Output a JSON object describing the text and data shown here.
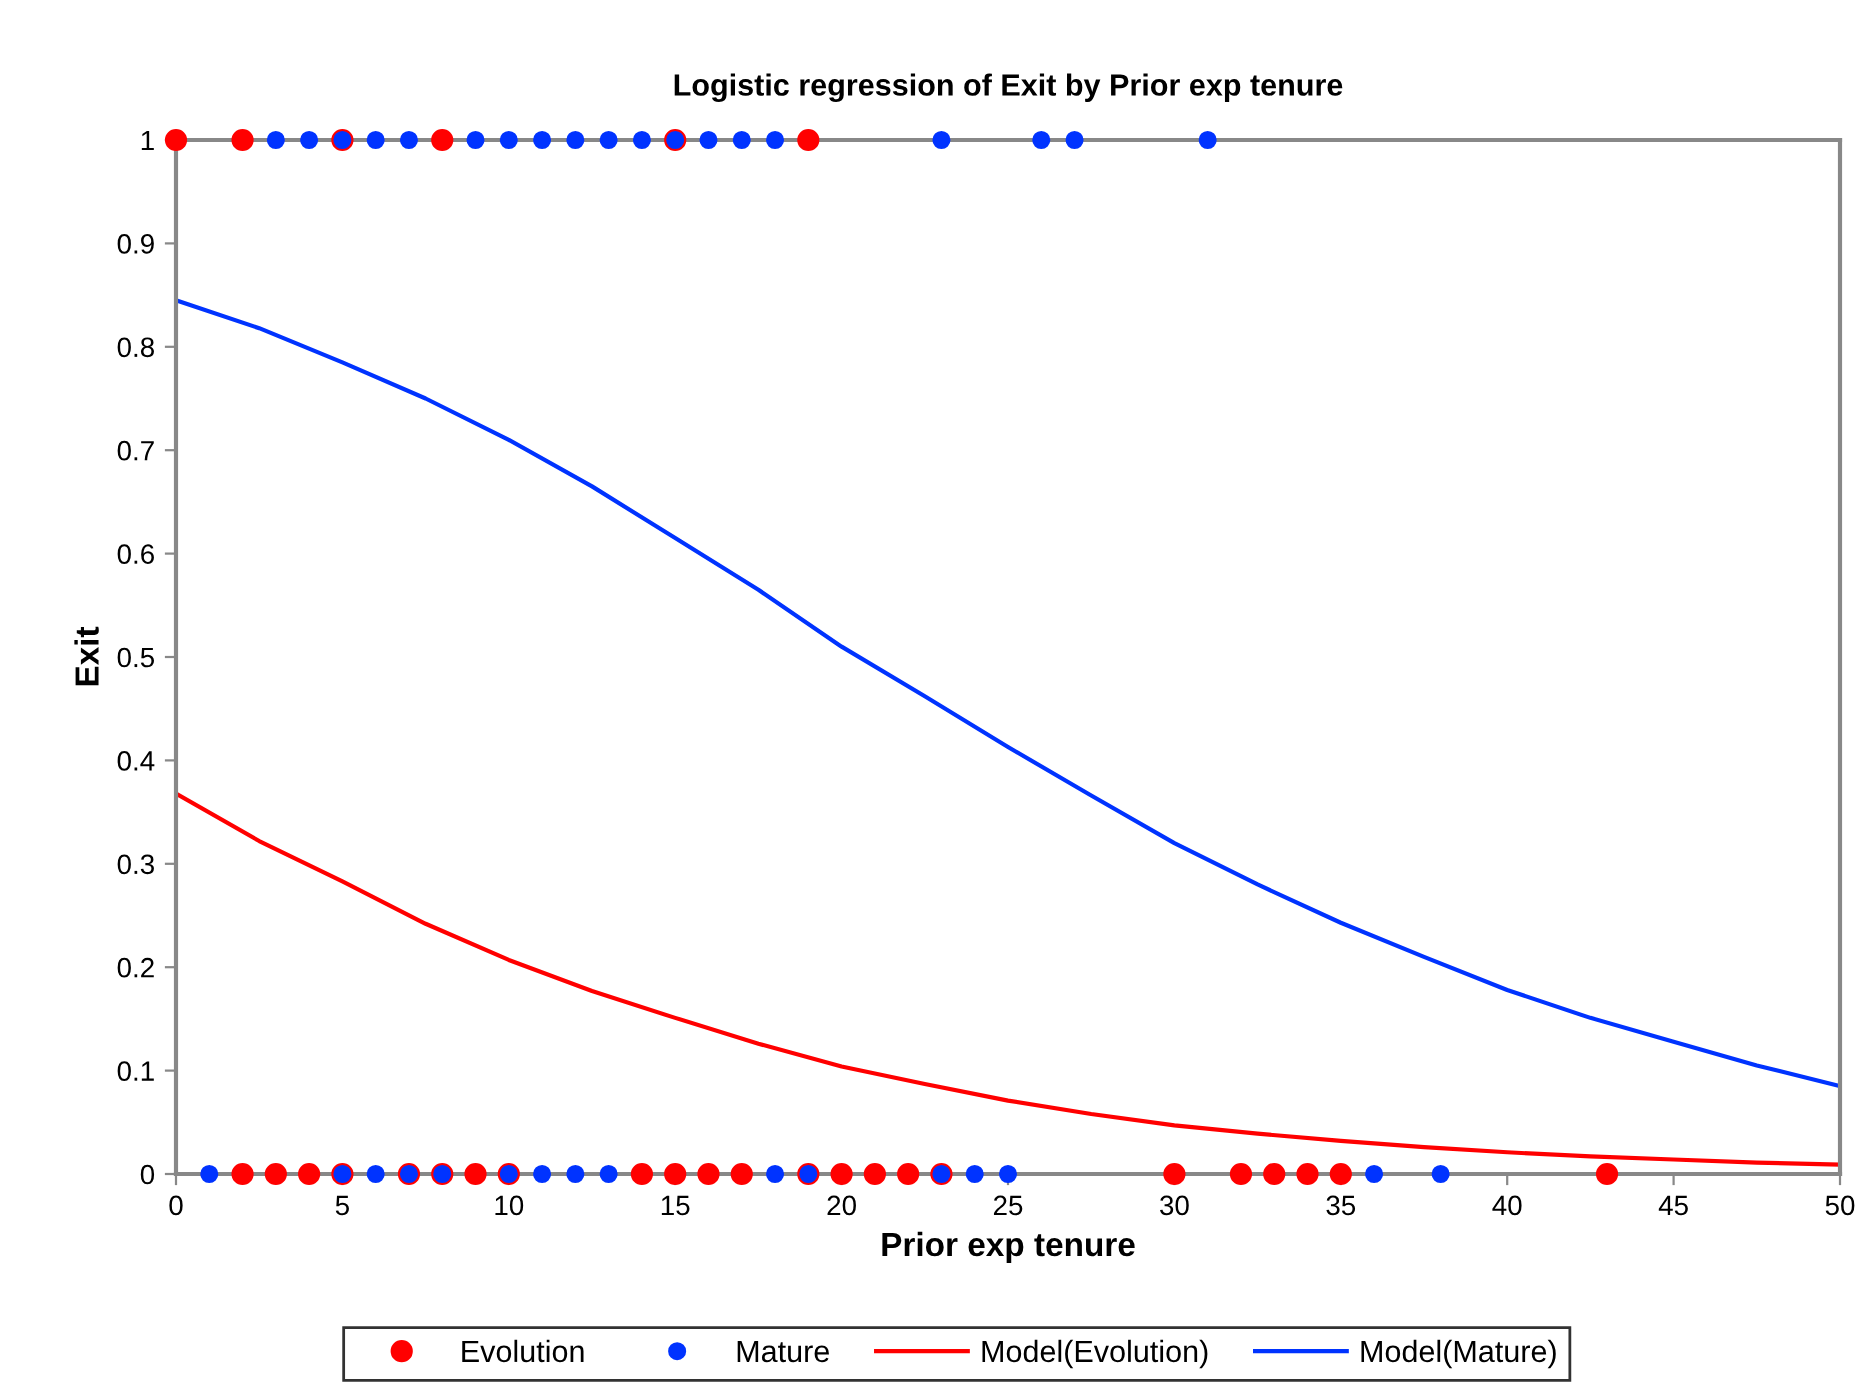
{
  "chart_data": {
    "type": "scatter",
    "title": "Logistic regression of Exit by Prior exp tenure",
    "xlabel": "Prior exp tenure",
    "ylabel": "Exit",
    "xlim": [
      0,
      50
    ],
    "xticks": [
      0,
      5,
      10,
      15,
      20,
      25,
      30,
      35,
      40,
      45,
      50
    ],
    "ylim": [
      0,
      1
    ],
    "yticks": [
      0,
      0.1,
      0.2,
      0.3,
      0.4,
      0.5,
      0.6,
      0.7,
      0.8,
      0.9,
      1
    ],
    "grid": false,
    "legend": "bottom",
    "series": [
      {
        "name": "Evolution",
        "marker": "circle",
        "color": "#ff0000",
        "x": [
          0,
          2,
          5,
          8,
          15,
          19,
          2,
          3,
          4,
          5,
          7,
          8,
          9,
          10,
          14,
          15,
          16,
          17,
          19,
          20,
          21,
          22,
          23,
          30,
          32,
          33,
          34,
          35,
          43
        ],
        "values": [
          1,
          1,
          1,
          1,
          1,
          1,
          0,
          0,
          0,
          0,
          0,
          0,
          0,
          0,
          0,
          0,
          0,
          0,
          0,
          0,
          0,
          0,
          0,
          0,
          0,
          0,
          0,
          0,
          0
        ]
      },
      {
        "name": "Mature",
        "marker": "circle",
        "color": "#0033ff",
        "x": [
          3,
          4,
          5,
          6,
          7,
          9,
          10,
          11,
          12,
          13,
          14,
          15,
          16,
          17,
          18,
          23,
          26,
          27,
          31,
          1,
          5,
          6,
          7,
          8,
          10,
          11,
          12,
          13,
          18,
          19,
          23,
          24,
          25,
          36,
          38
        ],
        "values": [
          1,
          1,
          1,
          1,
          1,
          1,
          1,
          1,
          1,
          1,
          1,
          1,
          1,
          1,
          1,
          1,
          1,
          1,
          1,
          0,
          0,
          0,
          0,
          0,
          0,
          0,
          0,
          0,
          0,
          0,
          0,
          0,
          0,
          0,
          0
        ]
      },
      {
        "name": "Model(Evolution)",
        "type": "line",
        "color": "#ff0000",
        "x": [
          0,
          2.5,
          5,
          7.5,
          10,
          12.5,
          15,
          17.5,
          20,
          22.5,
          25,
          27.5,
          30,
          32.5,
          35,
          37.5,
          40,
          42.5,
          45,
          47.5,
          50
        ],
        "values": [
          0.368,
          0.322,
          0.283,
          0.242,
          0.207,
          0.177,
          0.151,
          0.126,
          0.104,
          0.087,
          0.071,
          0.058,
          0.047,
          0.039,
          0.032,
          0.026,
          0.021,
          0.017,
          0.014,
          0.011,
          0.009
        ]
      },
      {
        "name": "Model(Mature)",
        "type": "line",
        "color": "#0033ff",
        "x": [
          0,
          2.5,
          5,
          7.5,
          10,
          12.5,
          15,
          17.5,
          20,
          22.5,
          25,
          27.5,
          30,
          32.5,
          35,
          37.5,
          40,
          42.5,
          45,
          47.5,
          50
        ],
        "values": [
          0.845,
          0.818,
          0.785,
          0.75,
          0.71,
          0.665,
          0.615,
          0.565,
          0.51,
          0.462,
          0.413,
          0.366,
          0.32,
          0.28,
          0.243,
          0.21,
          0.178,
          0.151,
          0.128,
          0.105,
          0.085
        ]
      }
    ]
  }
}
